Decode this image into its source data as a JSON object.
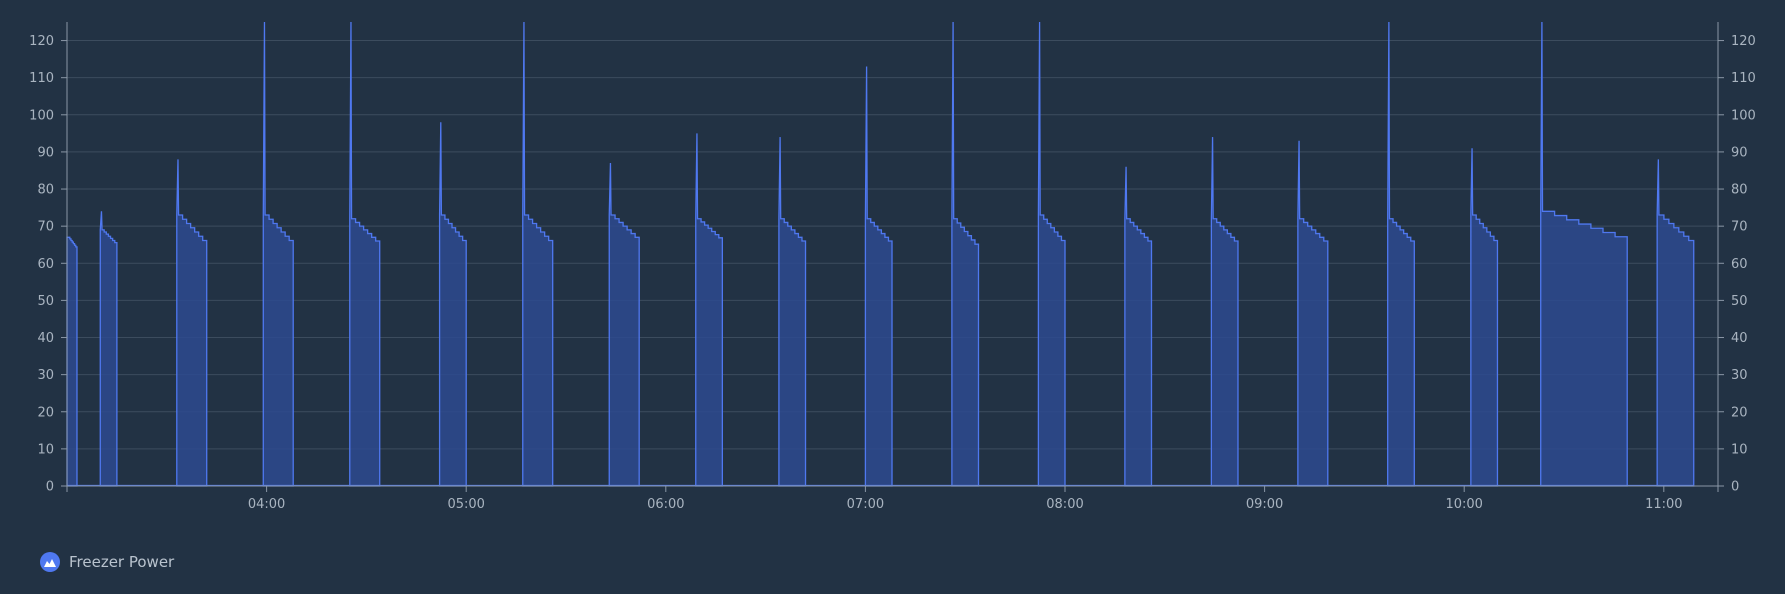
{
  "theme": {
    "background": "#223244",
    "grid": "#3c4c5e",
    "axis": "#8a97a6",
    "tick_text": "#a9b4c0",
    "series": "#4f78f0",
    "series_fill": "#2d4a8f"
  },
  "legend": {
    "label": "Freezer Power",
    "icon": "area-chart-icon"
  },
  "chart_data": {
    "type": "area",
    "x_axis": {
      "ticks": [
        "04:00",
        "05:00",
        "06:00",
        "07:00",
        "08:00",
        "09:00",
        "10:00",
        "11:00"
      ],
      "range": [
        "03:00",
        "11:17"
      ]
    },
    "y_axis": {
      "min": 0,
      "max": 125,
      "ticks": [
        0,
        10,
        20,
        30,
        40,
        50,
        60,
        70,
        80,
        90,
        100,
        110,
        120
      ],
      "mirrored_right": true
    },
    "grid": true,
    "legend_position": "bottom-left",
    "series": [
      {
        "name": "Freezer Power",
        "cycles": [
          {
            "start": "03:00",
            "end": "03:03",
            "peak": 67,
            "start_level": 67,
            "end_level": 64
          },
          {
            "start": "03:10",
            "end": "03:15",
            "peak": 74,
            "start_level": 69,
            "end_level": 65
          },
          {
            "start": "03:33",
            "end": "03:42",
            "peak": 88,
            "start_level": 73,
            "end_level": 65
          },
          {
            "start": "03:59",
            "end": "04:08",
            "peak": 125,
            "start_level": 73,
            "end_level": 65
          },
          {
            "start": "04:25",
            "end": "04:34",
            "peak": 125,
            "start_level": 72,
            "end_level": 65
          },
          {
            "start": "04:52",
            "end": "05:00",
            "peak": 98,
            "start_level": 73,
            "end_level": 65
          },
          {
            "start": "05:17",
            "end": "05:26",
            "peak": 125,
            "start_level": 73,
            "end_level": 65
          },
          {
            "start": "05:43",
            "end": "05:52",
            "peak": 87,
            "start_level": 73,
            "end_level": 66
          },
          {
            "start": "06:09",
            "end": "06:17",
            "peak": 95,
            "start_level": 72,
            "end_level": 66
          },
          {
            "start": "06:34",
            "end": "06:42",
            "peak": 94,
            "start_level": 72,
            "end_level": 65
          },
          {
            "start": "07:00",
            "end": "07:08",
            "peak": 113,
            "start_level": 72,
            "end_level": 65
          },
          {
            "start": "07:26",
            "end": "07:34",
            "peak": 125,
            "start_level": 72,
            "end_level": 64
          },
          {
            "start": "07:52",
            "end": "08:00",
            "peak": 125,
            "start_level": 73,
            "end_level": 65
          },
          {
            "start": "08:18",
            "end": "08:26",
            "peak": 86,
            "start_level": 72,
            "end_level": 65
          },
          {
            "start": "08:44",
            "end": "08:52",
            "peak": 94,
            "start_level": 72,
            "end_level": 65
          },
          {
            "start": "09:10",
            "end": "09:19",
            "peak": 93,
            "start_level": 72,
            "end_level": 65
          },
          {
            "start": "09:37",
            "end": "09:45",
            "peak": 125,
            "start_level": 72,
            "end_level": 65
          },
          {
            "start": "10:02",
            "end": "10:10",
            "peak": 91,
            "start_level": 73,
            "end_level": 65
          },
          {
            "start": "10:23",
            "end": "10:49",
            "peak": 125,
            "start_level": 74,
            "end_level": 66
          },
          {
            "start": "10:58",
            "end": "11:09",
            "peak": 88,
            "start_level": 73,
            "end_level": 65
          }
        ]
      }
    ]
  }
}
